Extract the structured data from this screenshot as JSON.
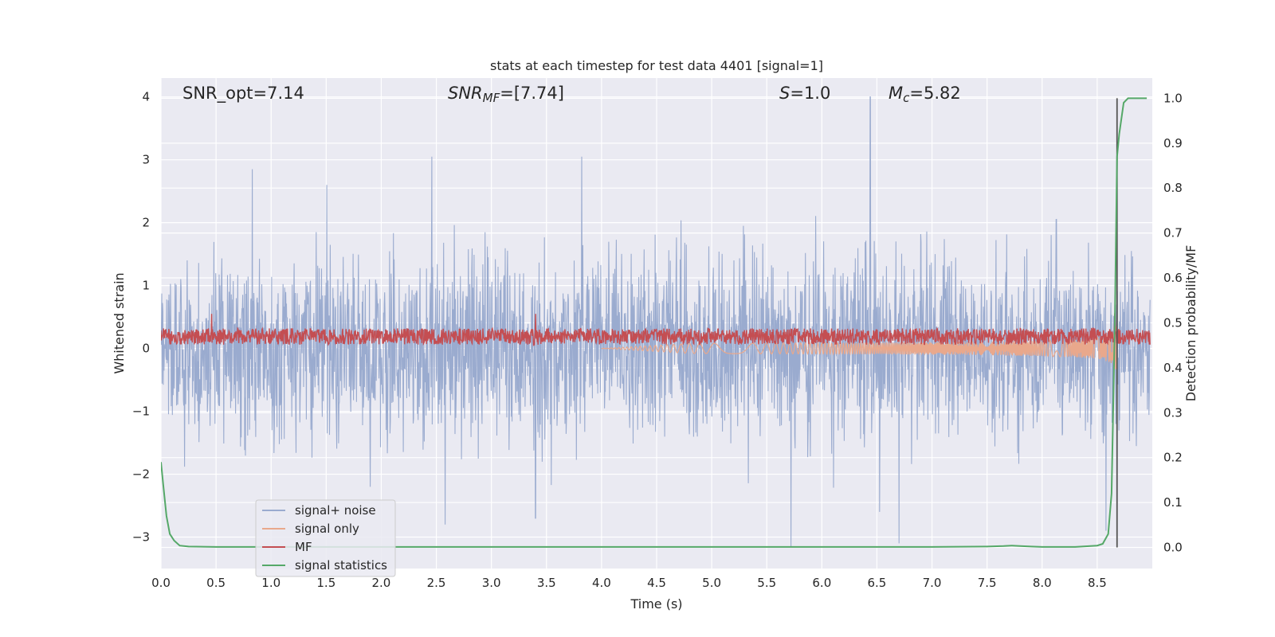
{
  "chart_data": {
    "type": "line",
    "title": "stats at each timestep for test data 4401 [signal=1]",
    "xlabel": "Time (s)",
    "ylabel": "Whitened strain",
    "ylabel_right": "Detection probability/MF",
    "xlim": [
      0.0,
      9.0
    ],
    "ylim": [
      -3.5,
      4.3
    ],
    "ylim_right": [
      -0.047,
      1.045
    ],
    "x_ticks": [
      "0.0",
      "0.5",
      "1.0",
      "1.5",
      "2.0",
      "2.5",
      "3.0",
      "3.5",
      "4.0",
      "4.5",
      "5.0",
      "5.5",
      "6.0",
      "6.5",
      "7.0",
      "7.5",
      "8.0",
      "8.5"
    ],
    "x_tick_values": [
      0.0,
      0.5,
      1.0,
      1.5,
      2.0,
      2.5,
      3.0,
      3.5,
      4.0,
      4.5,
      5.0,
      5.5,
      6.0,
      6.5,
      7.0,
      7.5,
      8.0,
      8.5
    ],
    "y_ticks": [
      "−3",
      "−2",
      "−1",
      "0",
      "1",
      "2",
      "3",
      "4"
    ],
    "y_tick_values": [
      -3,
      -2,
      -1,
      0,
      1,
      2,
      3,
      4
    ],
    "y_right_ticks": [
      "0.0",
      "0.1",
      "0.2",
      "0.3",
      "0.4",
      "0.5",
      "0.6",
      "0.7",
      "0.8",
      "0.9",
      "1.0"
    ],
    "y_right_tick_values": [
      0.0,
      0.1,
      0.2,
      0.3,
      0.4,
      0.5,
      0.6,
      0.7,
      0.8,
      0.9,
      1.0
    ],
    "grid": true,
    "legend_position": "lower-left",
    "annotations": {
      "snr_opt": "SNR_opt=7.14",
      "snr_mf_prefix": "SNR",
      "snr_mf_sub": "MF",
      "snr_mf_value": "=[7.74]",
      "s_prefix": "S",
      "s_value": "=1.0",
      "mc_prefix": "M",
      "mc_sub": "c",
      "mc_value": "=5.82"
    },
    "merger_time": 8.68,
    "series": [
      {
        "name": "signal+ noise",
        "color": "#9aabcf",
        "axis": "left",
        "envelope": {
          "mean": 0.0,
          "std": 0.72,
          "spikes": [
            [
              0.83,
              2.85
            ],
            [
              2.46,
              3.05
            ],
            [
              3.82,
              3.05
            ],
            [
              6.44,
              4.0
            ],
            [
              5.72,
              -3.15
            ],
            [
              6.7,
              -3.1
            ],
            [
              3.4,
              -2.7
            ],
            [
              2.58,
              -2.8
            ],
            [
              8.58,
              -2.9
            ]
          ]
        }
      },
      {
        "name": "signal only",
        "color": "#e9a88c",
        "axis": "left",
        "chirp": {
          "start": 4.0,
          "end": 8.68,
          "final_amplitude": 0.45
        }
      },
      {
        "name": "MF",
        "color": "#c44e52",
        "axis": "left",
        "band": {
          "center": 0.19,
          "amplitude": 0.13,
          "spikes": [
            [
              0.46,
              0.55
            ],
            [
              3.4,
              0.55
            ],
            [
              8.66,
              0.55
            ]
          ]
        }
      },
      {
        "name": "signal statistics",
        "color": "#55a868",
        "axis": "right",
        "x": [
          0.0,
          0.02,
          0.05,
          0.08,
          0.12,
          0.17,
          0.25,
          0.5,
          1.0,
          2.0,
          3.0,
          4.0,
          5.0,
          6.0,
          7.0,
          7.5,
          7.65,
          7.72,
          7.8,
          7.9,
          8.0,
          8.3,
          8.5,
          8.55,
          8.6,
          8.63,
          8.66,
          8.68,
          8.7,
          8.74,
          8.78,
          8.85,
          8.95
        ],
        "values": [
          0.19,
          0.14,
          0.07,
          0.03,
          0.015,
          0.004,
          0.002,
          0.001,
          0.001,
          0.001,
          0.001,
          0.001,
          0.001,
          0.001,
          0.001,
          0.002,
          0.003,
          0.004,
          0.003,
          0.002,
          0.001,
          0.001,
          0.004,
          0.008,
          0.03,
          0.12,
          0.5,
          0.87,
          0.92,
          0.99,
          1.0,
          1.0,
          1.0
        ]
      }
    ]
  }
}
